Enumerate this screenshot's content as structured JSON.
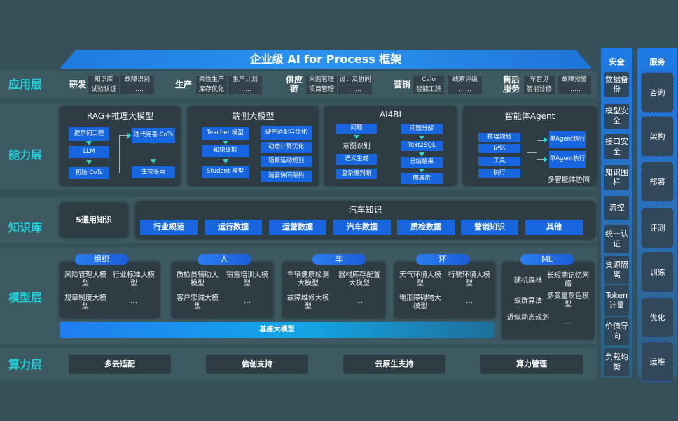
{
  "title": "企业级 AI for Process 框架",
  "layers": {
    "app": "应用层",
    "capability": "能力层",
    "knowledge": "知识库",
    "model": "模型层",
    "compute": "算力层"
  },
  "app_groups": [
    {
      "name": "研发",
      "items": [
        "知识库",
        "试验认证",
        "故障识别",
        "……"
      ]
    },
    {
      "name": "生产",
      "items": [
        "柔性生产",
        "库存优化",
        "生产计划",
        "……"
      ]
    },
    {
      "name": "供应链",
      "items": [
        "采购管理",
        "项目管理",
        "设计及协同",
        "……"
      ]
    },
    {
      "name": "营销",
      "items": [
        "Calo",
        "智能工牌",
        "线索评级",
        "……"
      ]
    },
    {
      "name": "售后服务",
      "items": [
        "车智见",
        "智能诊修",
        "故障预警",
        "……"
      ]
    }
  ],
  "capability": {
    "rag": {
      "title": "RAG+推理大模型",
      "boxes": [
        "提示词工程",
        "LLM",
        "初始 CoTs",
        "迭代完善 CoTs",
        "生成答案"
      ]
    },
    "edge": {
      "title": "端侧大模型",
      "boxes": [
        "Teacher 模型",
        "知识提取",
        "Student 模型",
        "硬件适配与优化",
        "动态计算优化",
        "场景运动规划",
        "端云协同架构"
      ]
    },
    "ai4bi": {
      "title": "AI4BI",
      "boxes": [
        "问题",
        "语义生成",
        "复杂度判断",
        "问题分解",
        "Text2SQL",
        "总结结果",
        "图展示"
      ],
      "intent": "意图识别"
    },
    "agent": {
      "title": "智能体Agent",
      "boxes": [
        "推理规划",
        "记忆",
        "工具",
        "执行",
        "单Agent执行",
        "单Agent执行"
      ],
      "footer": "多智能体协同"
    }
  },
  "knowledge": {
    "general": "5通用知识",
    "auto_title": "汽车知识",
    "chips": [
      "行业规范",
      "运行数据",
      "运营数据",
      "汽车数据",
      "质检数据",
      "营销知识",
      "其他"
    ]
  },
  "model": {
    "groups": [
      {
        "name": "组织",
        "items": [
          "风险管理大模型",
          "行业标准大模型",
          "规章制度大模型",
          "…"
        ]
      },
      {
        "name": "人",
        "items": [
          "质检员辅助大模型",
          "销售培训大模型",
          "客户忠诚大模型",
          "…"
        ]
      },
      {
        "name": "车",
        "items": [
          "车辆健康检测大模型",
          "器材库存配置大模型",
          "故障维修大模型",
          "…"
        ]
      },
      {
        "name": "环",
        "items": [
          "天气环境大模型",
          "行驶环境大模型",
          "地形障碍物大模型",
          "…"
        ]
      },
      {
        "name": "ML",
        "items": [
          "随机森林",
          "长短期记忆网络",
          "蚁群算法",
          "多变量灰色模型",
          "近似动态规划",
          "…"
        ]
      }
    ],
    "base": "基座大模型"
  },
  "compute": [
    "多云适配",
    "信创支持",
    "云原生支持",
    "算力管理"
  ],
  "security": {
    "title": "安全",
    "items": [
      "数据备份",
      "模型安全",
      "接口安全",
      "知识围栏",
      "流控",
      "统一认证",
      "资源隔离",
      "Token计量",
      "价值导向",
      "负载均衡"
    ]
  },
  "service": {
    "title": "服务",
    "items": [
      "咨询",
      "架构",
      "部署",
      "评测",
      "训练",
      "优化",
      "运维"
    ]
  },
  "colors": {
    "accent": "#1766e0",
    "label": "#22d3dc",
    "background": "#36505a",
    "panel": "#2e3c44"
  }
}
